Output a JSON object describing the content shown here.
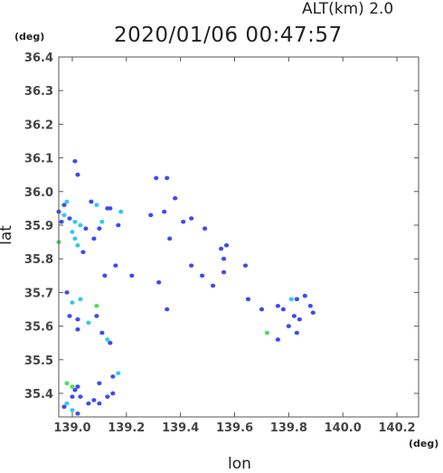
{
  "header": {
    "alt_label": "ALT(km)  2.0",
    "timestamp": "2020/01/06 00:47:57"
  },
  "chart_data": {
    "type": "scatter",
    "title": "2020/01/06 00:47:57",
    "xlabel": "lon",
    "ylabel": "lat",
    "x_unit": "(deg)",
    "y_unit": "(deg)",
    "xlim": [
      138.95,
      140.28
    ],
    "ylim": [
      35.33,
      36.4
    ],
    "x_ticks": [
      139.0,
      139.2,
      139.4,
      139.6,
      139.8,
      140.0,
      140.2
    ],
    "x_tick_labels": [
      "139.0",
      "139.2",
      "139.4",
      "139.6",
      "139.8",
      "140.0",
      "140.2"
    ],
    "y_ticks": [
      35.4,
      35.5,
      35.6,
      35.7,
      35.8,
      35.9,
      36.0,
      36.1,
      36.2,
      36.3,
      36.4
    ],
    "y_tick_labels": [
      "35.4",
      "35.5",
      "35.6",
      "35.7",
      "35.8",
      "35.9",
      "36.0",
      "36.1",
      "36.2",
      "36.3",
      "36.4"
    ],
    "grid": false,
    "colors": {
      "blue": "#3b4cf0",
      "cyan": "#33c8f0",
      "green": "#44e05a",
      "navy": "#2a2ad0"
    },
    "points": [
      {
        "x": 139.01,
        "y": 36.09,
        "v": "blue"
      },
      {
        "x": 139.02,
        "y": 36.05,
        "v": "blue"
      },
      {
        "x": 138.98,
        "y": 35.97,
        "v": "cyan"
      },
      {
        "x": 138.97,
        "y": 35.96,
        "v": "blue"
      },
      {
        "x": 138.95,
        "y": 35.94,
        "v": "blue"
      },
      {
        "x": 138.97,
        "y": 35.93,
        "v": "cyan"
      },
      {
        "x": 138.96,
        "y": 35.91,
        "v": "blue"
      },
      {
        "x": 138.99,
        "y": 35.92,
        "v": "blue"
      },
      {
        "x": 139.01,
        "y": 35.91,
        "v": "cyan"
      },
      {
        "x": 139.03,
        "y": 35.9,
        "v": "cyan"
      },
      {
        "x": 139.05,
        "y": 35.89,
        "v": "blue"
      },
      {
        "x": 139.07,
        "y": 35.97,
        "v": "blue"
      },
      {
        "x": 139.09,
        "y": 35.96,
        "v": "cyan"
      },
      {
        "x": 139.11,
        "y": 35.91,
        "v": "cyan"
      },
      {
        "x": 139.13,
        "y": 35.95,
        "v": "blue"
      },
      {
        "x": 139.14,
        "y": 35.95,
        "v": "blue"
      },
      {
        "x": 139.17,
        "y": 35.9,
        "v": "blue"
      },
      {
        "x": 139.18,
        "y": 35.94,
        "v": "cyan"
      },
      {
        "x": 139.01,
        "y": 35.86,
        "v": "cyan"
      },
      {
        "x": 139.02,
        "y": 35.84,
        "v": "cyan"
      },
      {
        "x": 139.0,
        "y": 35.88,
        "v": "cyan"
      },
      {
        "x": 138.95,
        "y": 35.85,
        "v": "green"
      },
      {
        "x": 139.04,
        "y": 35.82,
        "v": "blue"
      },
      {
        "x": 139.08,
        "y": 35.86,
        "v": "blue"
      },
      {
        "x": 139.1,
        "y": 35.89,
        "v": "blue"
      },
      {
        "x": 139.12,
        "y": 35.75,
        "v": "blue"
      },
      {
        "x": 139.16,
        "y": 35.78,
        "v": "blue"
      },
      {
        "x": 139.22,
        "y": 35.75,
        "v": "blue"
      },
      {
        "x": 139.31,
        "y": 36.04,
        "v": "blue"
      },
      {
        "x": 139.35,
        "y": 36.04,
        "v": "blue"
      },
      {
        "x": 139.38,
        "y": 35.98,
        "v": "blue"
      },
      {
        "x": 139.29,
        "y": 35.93,
        "v": "blue"
      },
      {
        "x": 139.34,
        "y": 35.94,
        "v": "blue"
      },
      {
        "x": 139.36,
        "y": 35.86,
        "v": "blue"
      },
      {
        "x": 139.41,
        "y": 35.91,
        "v": "blue"
      },
      {
        "x": 139.44,
        "y": 35.92,
        "v": "blue"
      },
      {
        "x": 139.49,
        "y": 35.89,
        "v": "blue"
      },
      {
        "x": 139.55,
        "y": 35.83,
        "v": "blue"
      },
      {
        "x": 139.57,
        "y": 35.84,
        "v": "blue"
      },
      {
        "x": 139.56,
        "y": 35.8,
        "v": "blue"
      },
      {
        "x": 139.48,
        "y": 35.75,
        "v": "blue"
      },
      {
        "x": 139.52,
        "y": 35.72,
        "v": "blue"
      },
      {
        "x": 139.44,
        "y": 35.78,
        "v": "blue"
      },
      {
        "x": 139.32,
        "y": 35.73,
        "v": "blue"
      },
      {
        "x": 139.35,
        "y": 35.65,
        "v": "blue"
      },
      {
        "x": 139.56,
        "y": 35.76,
        "v": "blue"
      },
      {
        "x": 139.64,
        "y": 35.78,
        "v": "blue"
      },
      {
        "x": 139.65,
        "y": 35.68,
        "v": "blue"
      },
      {
        "x": 139.7,
        "y": 35.65,
        "v": "blue"
      },
      {
        "x": 139.76,
        "y": 35.66,
        "v": "blue"
      },
      {
        "x": 139.78,
        "y": 35.65,
        "v": "blue"
      },
      {
        "x": 139.81,
        "y": 35.68,
        "v": "cyan"
      },
      {
        "x": 139.83,
        "y": 35.68,
        "v": "blue"
      },
      {
        "x": 139.86,
        "y": 35.69,
        "v": "blue"
      },
      {
        "x": 139.88,
        "y": 35.66,
        "v": "blue"
      },
      {
        "x": 139.89,
        "y": 35.64,
        "v": "blue"
      },
      {
        "x": 139.82,
        "y": 35.63,
        "v": "blue"
      },
      {
        "x": 139.84,
        "y": 35.62,
        "v": "blue"
      },
      {
        "x": 139.8,
        "y": 35.6,
        "v": "blue"
      },
      {
        "x": 139.83,
        "y": 35.58,
        "v": "blue"
      },
      {
        "x": 139.76,
        "y": 35.56,
        "v": "blue"
      },
      {
        "x": 139.72,
        "y": 35.58,
        "v": "green"
      },
      {
        "x": 138.98,
        "y": 35.7,
        "v": "blue"
      },
      {
        "x": 139.0,
        "y": 35.67,
        "v": "cyan"
      },
      {
        "x": 139.03,
        "y": 35.68,
        "v": "cyan"
      },
      {
        "x": 139.02,
        "y": 35.62,
        "v": "blue"
      },
      {
        "x": 138.99,
        "y": 35.63,
        "v": "blue"
      },
      {
        "x": 139.06,
        "y": 35.61,
        "v": "cyan"
      },
      {
        "x": 139.02,
        "y": 35.59,
        "v": "blue"
      },
      {
        "x": 139.09,
        "y": 35.66,
        "v": "green"
      },
      {
        "x": 139.09,
        "y": 35.63,
        "v": "blue"
      },
      {
        "x": 139.11,
        "y": 35.58,
        "v": "blue"
      },
      {
        "x": 139.13,
        "y": 35.56,
        "v": "cyan"
      },
      {
        "x": 139.14,
        "y": 35.55,
        "v": "blue"
      },
      {
        "x": 139.17,
        "y": 35.46,
        "v": "cyan"
      },
      {
        "x": 139.15,
        "y": 35.45,
        "v": "blue"
      },
      {
        "x": 139.1,
        "y": 35.43,
        "v": "blue"
      },
      {
        "x": 138.98,
        "y": 35.43,
        "v": "green"
      },
      {
        "x": 139.0,
        "y": 35.42,
        "v": "green"
      },
      {
        "x": 139.02,
        "y": 35.42,
        "v": "blue"
      },
      {
        "x": 139.01,
        "y": 35.41,
        "v": "blue"
      },
      {
        "x": 139.0,
        "y": 35.39,
        "v": "blue"
      },
      {
        "x": 139.03,
        "y": 35.39,
        "v": "blue"
      },
      {
        "x": 138.98,
        "y": 35.37,
        "v": "cyan"
      },
      {
        "x": 138.97,
        "y": 35.36,
        "v": "blue"
      },
      {
        "x": 139.0,
        "y": 35.35,
        "v": "cyan"
      },
      {
        "x": 139.02,
        "y": 35.34,
        "v": "blue"
      },
      {
        "x": 139.06,
        "y": 35.37,
        "v": "blue"
      },
      {
        "x": 139.08,
        "y": 35.38,
        "v": "blue"
      },
      {
        "x": 139.1,
        "y": 35.37,
        "v": "blue"
      },
      {
        "x": 139.13,
        "y": 35.39,
        "v": "blue"
      },
      {
        "x": 139.15,
        "y": 35.4,
        "v": "blue"
      }
    ]
  }
}
